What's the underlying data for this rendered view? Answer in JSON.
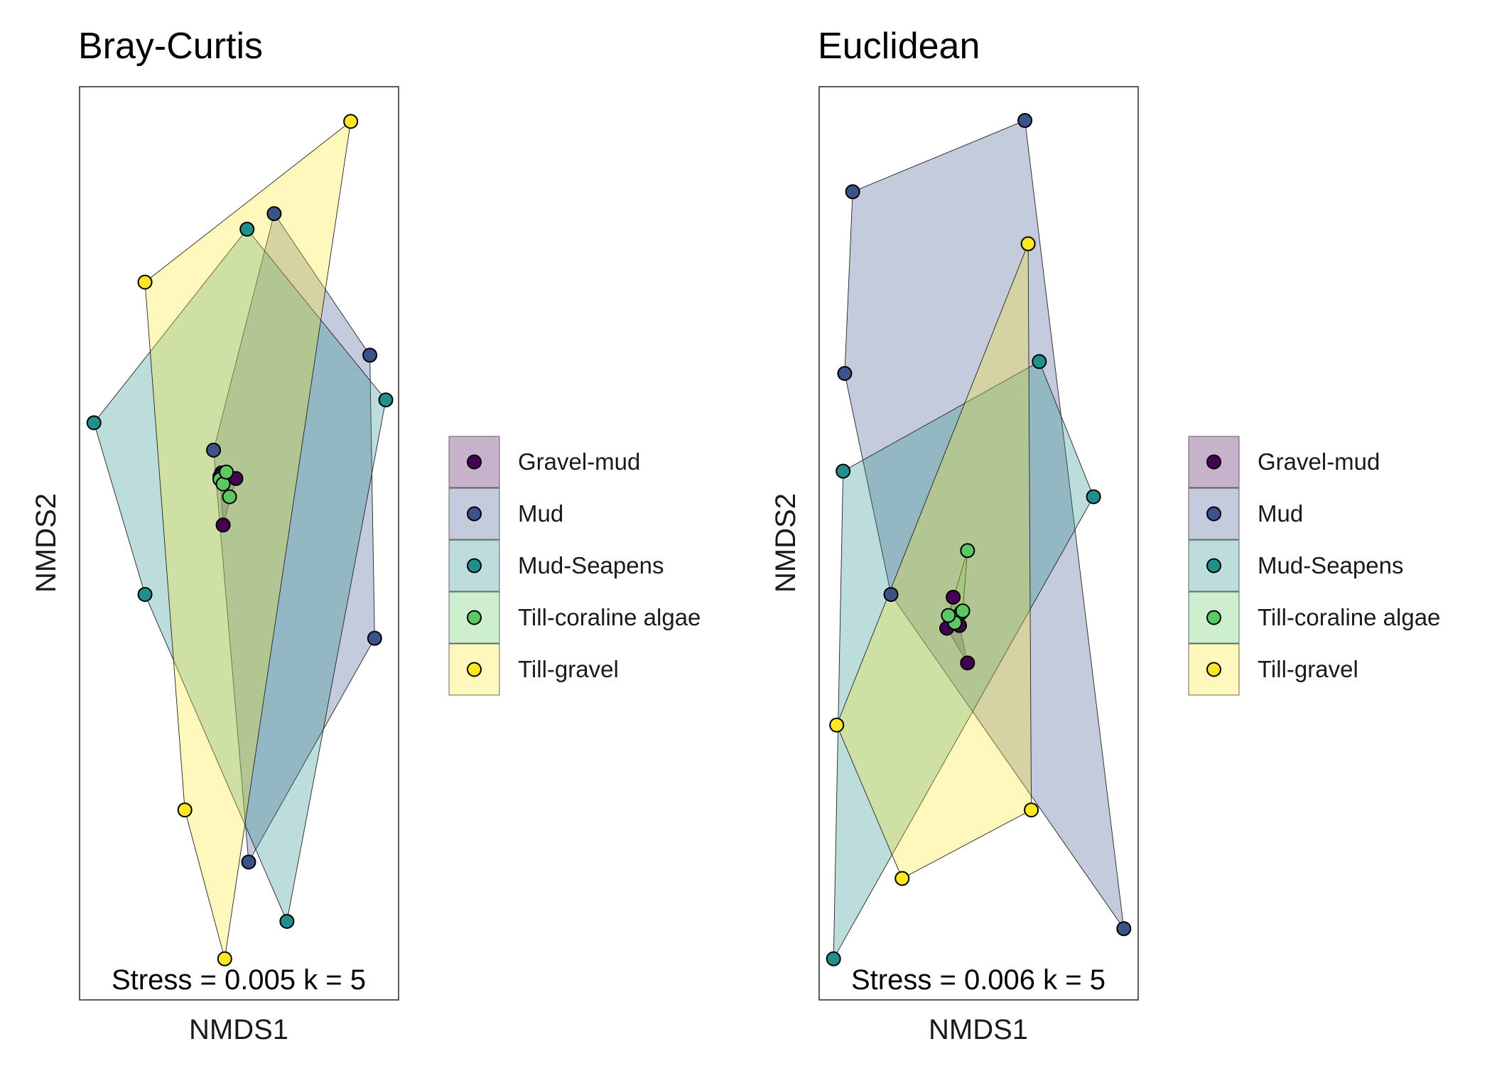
{
  "groups": [
    {
      "name": "Gravel-mud",
      "color": "#440154"
    },
    {
      "name": "Mud",
      "color": "#3B528B"
    },
    {
      "name": "Mud-Seapens",
      "color": "#21908C"
    },
    {
      "name": "Till-coraline algae",
      "color": "#5DC863"
    },
    {
      "name": "Till-gravel",
      "color": "#FDE725"
    }
  ],
  "chart_data": [
    {
      "type": "scatter",
      "title": "Bray-Curtis",
      "xlabel": "NMDS1",
      "ylabel": "NMDS2",
      "annotation": "Stress = 0.005 k = 5",
      "xlim": [
        0,
        100
      ],
      "ylim": [
        0,
        100
      ],
      "axis_ticks": false,
      "grid": false,
      "legend": "right",
      "hulls": true,
      "series": [
        {
          "name": "Gravel-mud",
          "points": [
            [
              44.5,
              57.7
            ],
            [
              46.0,
              57.7
            ],
            [
              49.0,
              57.1
            ],
            [
              45.0,
              52.0
            ],
            [
              44.0,
              57.3
            ]
          ]
        },
        {
          "name": "Mud",
          "points": [
            [
              42.0,
              60.2
            ],
            [
              61.0,
              86.1
            ],
            [
              91.0,
              70.6
            ],
            [
              92.5,
              39.6
            ],
            [
              53.0,
              15.1
            ]
          ]
        },
        {
          "name": "Mud-Seapens",
          "points": [
            [
              4.5,
              63.2
            ],
            [
              52.5,
              84.4
            ],
            [
              96.0,
              65.7
            ],
            [
              65.0,
              8.6
            ],
            [
              20.5,
              44.4
            ]
          ]
        },
        {
          "name": "Till-coraline algae",
          "points": [
            [
              44.0,
              57.0
            ],
            [
              45.0,
              56.5
            ],
            [
              46.0,
              57.8
            ],
            [
              47.0,
              55.1
            ]
          ]
        },
        {
          "name": "Till-gravel",
          "points": [
            [
              20.5,
              78.6
            ],
            [
              85.0,
              96.2
            ],
            [
              45.5,
              4.5
            ],
            [
              33.0,
              20.8
            ]
          ]
        }
      ]
    },
    {
      "type": "scatter",
      "title": "Euclidean",
      "xlabel": "NMDS1",
      "ylabel": "NMDS2",
      "annotation": "Stress = 0.006 k = 5",
      "xlim": [
        0,
        100
      ],
      "ylim": [
        0,
        100
      ],
      "axis_ticks": false,
      "grid": false,
      "legend": "right",
      "hulls": true,
      "series": [
        {
          "name": "Gravel-mud",
          "points": [
            [
              42.0,
              44.1
            ],
            [
              40.0,
              40.7
            ],
            [
              46.5,
              36.9
            ],
            [
              44.0,
              41.0
            ]
          ]
        },
        {
          "name": "Mud",
          "points": [
            [
              10.5,
              88.5
            ],
            [
              64.5,
              96.3
            ],
            [
              8.0,
              68.6
            ],
            [
              22.5,
              44.4
            ],
            [
              95.5,
              7.8
            ]
          ]
        },
        {
          "name": "Mud-Seapens",
          "points": [
            [
              7.5,
              57.9
            ],
            [
              69.0,
              69.9
            ],
            [
              86.0,
              55.1
            ],
            [
              4.5,
              4.5
            ]
          ]
        },
        {
          "name": "Till-coraline algae",
          "points": [
            [
              46.5,
              49.2
            ],
            [
              44.5,
              42.4
            ],
            [
              42.5,
              41.3
            ],
            [
              40.5,
              42.1
            ],
            [
              45.0,
              42.6
            ]
          ]
        },
        {
          "name": "Till-gravel",
          "points": [
            [
              65.5,
              82.8
            ],
            [
              5.5,
              30.1
            ],
            [
              26.0,
              13.3
            ],
            [
              66.5,
              20.8
            ]
          ]
        }
      ]
    }
  ]
}
